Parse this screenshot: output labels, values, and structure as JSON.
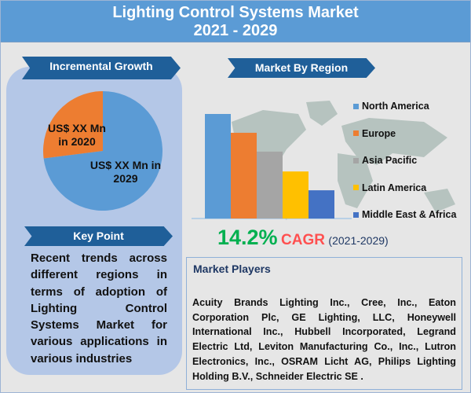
{
  "header": {
    "title_line1": "Lighting Control Systems Market",
    "title_line2": "2021 - 2029"
  },
  "incremental_growth": {
    "heading": "Incremental Growth",
    "slices": [
      {
        "label": "US$ XX Mn in 2020",
        "color": "#ed7d31",
        "share": 0.27
      },
      {
        "label": "US$ XX Mn in 2029",
        "color": "#5b9bd5",
        "share": 0.73
      }
    ]
  },
  "key_point": {
    "heading": "Key Point",
    "text": "Recent trends across different regions in terms of adoption of Lighting Control Systems Market for",
    "text_last": "various applications in various industries"
  },
  "market_by_region": {
    "heading": "Market By Region",
    "bars": [
      {
        "region": "North America",
        "color": "#5b9bd5",
        "relative_level": 1.0
      },
      {
        "region": "Europe",
        "color": "#ed7d31",
        "relative_level": 0.82
      },
      {
        "region": "Asia Pacific",
        "color": "#a5a5a5",
        "relative_level": 0.64
      },
      {
        "region": "Latin America",
        "color": "#ffc000",
        "relative_level": 0.45
      },
      {
        "region": "Middle East & Africa",
        "color": "#4472c4",
        "relative_level": 0.27
      }
    ]
  },
  "cagr": {
    "value": "14.2%",
    "label": "CAGR",
    "period": "(2021-2029)",
    "value_color": "#00b050",
    "label_color": "#ff5050",
    "period_color": "#1f3864"
  },
  "market_players": {
    "heading": "Market Players",
    "text": "Acuity Brands Lighting Inc., Cree, Inc., Eaton Corporation Plc, GE Lighting, LLC, Honeywell International Inc., Hubbell Incorporated, Legrand Electric Ltd, Leviton Manufacturing Co., Inc., Lutron Electronics, Inc., OSRAM Licht AG, Philips Lighting Holding B.V.,  Schneider Electric SE ."
  }
}
